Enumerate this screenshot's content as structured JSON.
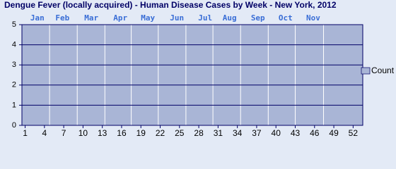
{
  "chart_data": {
    "type": "bar",
    "title": "Dengue Fever (locally acquired) - Human Disease Cases by Week - New York, 2012",
    "x": [
      1,
      2,
      3,
      4,
      5,
      6,
      7,
      8,
      9,
      10,
      11,
      12,
      13,
      14,
      15,
      16,
      17,
      18,
      19,
      20,
      21,
      22,
      23,
      24,
      25,
      26,
      27,
      28,
      29,
      30,
      31,
      32,
      33,
      34,
      35,
      36,
      37,
      38,
      39,
      40,
      41,
      42,
      43,
      44,
      45,
      46,
      47,
      48,
      49,
      50,
      51,
      52
    ],
    "series": [
      {
        "name": "Count",
        "color": "#a9b5d6",
        "values": [
          0,
          0,
          0,
          0,
          0,
          0,
          0,
          0,
          0,
          0,
          0,
          0,
          0,
          0,
          0,
          0,
          0,
          0,
          0,
          0,
          0,
          0,
          0,
          0,
          0,
          0,
          0,
          0,
          0,
          0,
          0,
          0,
          0,
          0,
          0,
          0,
          0,
          0,
          0,
          0,
          0,
          0,
          0,
          0,
          0,
          0,
          0,
          0,
          0,
          0,
          0,
          0
        ]
      }
    ],
    "xlim": [
      0.5,
      53.5
    ],
    "xticks": [
      1,
      4,
      7,
      10,
      13,
      16,
      19,
      22,
      25,
      28,
      31,
      34,
      37,
      40,
      43,
      46,
      49,
      52
    ],
    "x2ticks": [
      {
        "value": 2.9,
        "label": "Jan"
      },
      {
        "value": 6.8,
        "label": "Feb"
      },
      {
        "value": 11.3,
        "label": "Mar"
      },
      {
        "value": 15.8,
        "label": "Apr"
      },
      {
        "value": 20.1,
        "label": "May"
      },
      {
        "value": 24.6,
        "label": "Jun"
      },
      {
        "value": 29,
        "label": "Jul"
      },
      {
        "value": 32.8,
        "label": "Aug"
      },
      {
        "value": 37.2,
        "label": "Sep"
      },
      {
        "value": 41.5,
        "label": "Oct"
      },
      {
        "value": 45.8,
        "label": "Nov"
      }
    ],
    "x2grid": [
      4.8,
      9.1,
      13.4,
      17.5,
      21.7,
      26,
      30.2,
      34.5,
      38.8,
      43,
      47.4
    ],
    "ylim": [
      0,
      5
    ],
    "yticks": [
      0,
      1,
      2,
      3,
      4,
      5
    ],
    "grid": true,
    "legend": "right"
  }
}
